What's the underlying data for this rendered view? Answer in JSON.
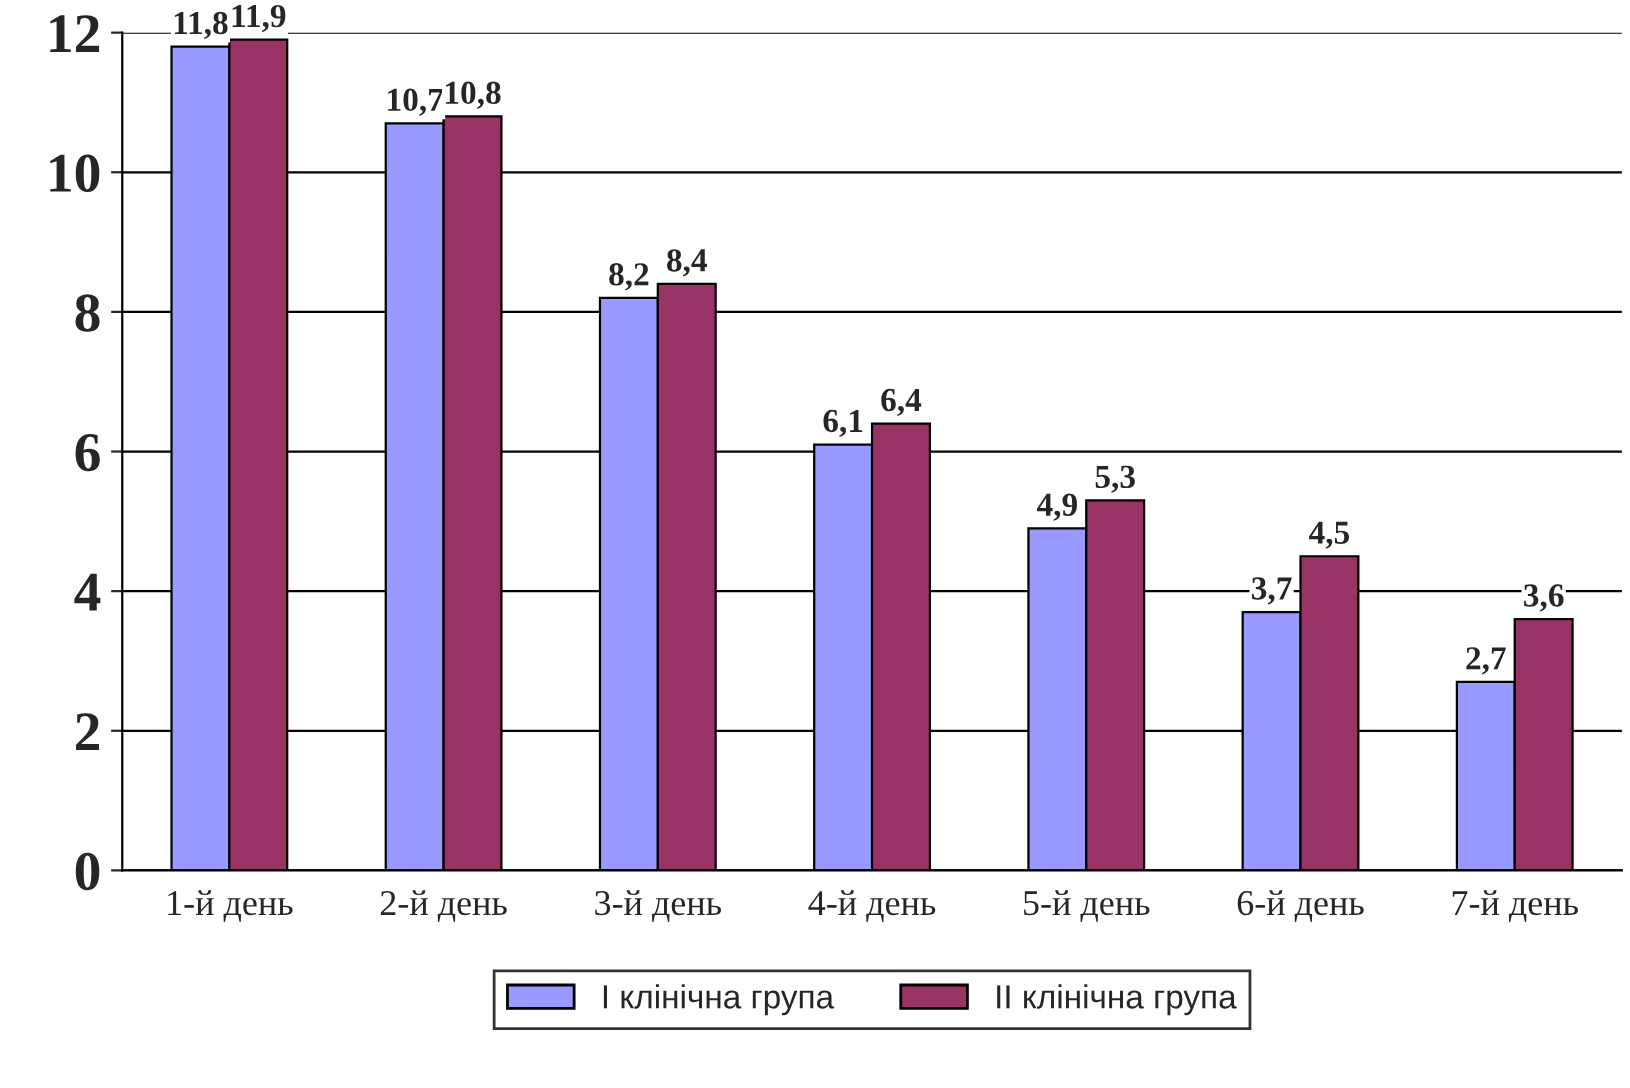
{
  "chart_data": {
    "type": "bar",
    "categories": [
      "1-й день",
      "2-й день",
      "3-й день",
      "4-й день",
      "5-й день",
      "6-й день",
      "7-й день"
    ],
    "series": [
      {
        "name": "I клінічна група",
        "color": "#9999ff",
        "values": [
          11.8,
          10.7,
          8.2,
          6.1,
          4.9,
          3.7,
          2.7
        ],
        "value_labels": [
          "11,8",
          "10,7",
          "8,2",
          "6,1",
          "4,9",
          "3,7",
          "2,7"
        ]
      },
      {
        "name": "II клінічна група",
        "color": "#993366",
        "values": [
          11.9,
          10.8,
          8.4,
          6.4,
          5.3,
          4.5,
          3.6
        ],
        "value_labels": [
          "11,9",
          "10,8",
          "8,4",
          "6,4",
          "5,3",
          "4,5",
          "3,6"
        ]
      }
    ],
    "ylim": [
      0,
      12
    ],
    "yticks": [
      0,
      2,
      4,
      6,
      8,
      10,
      12
    ],
    "grid": "y",
    "legend": "bottom"
  }
}
